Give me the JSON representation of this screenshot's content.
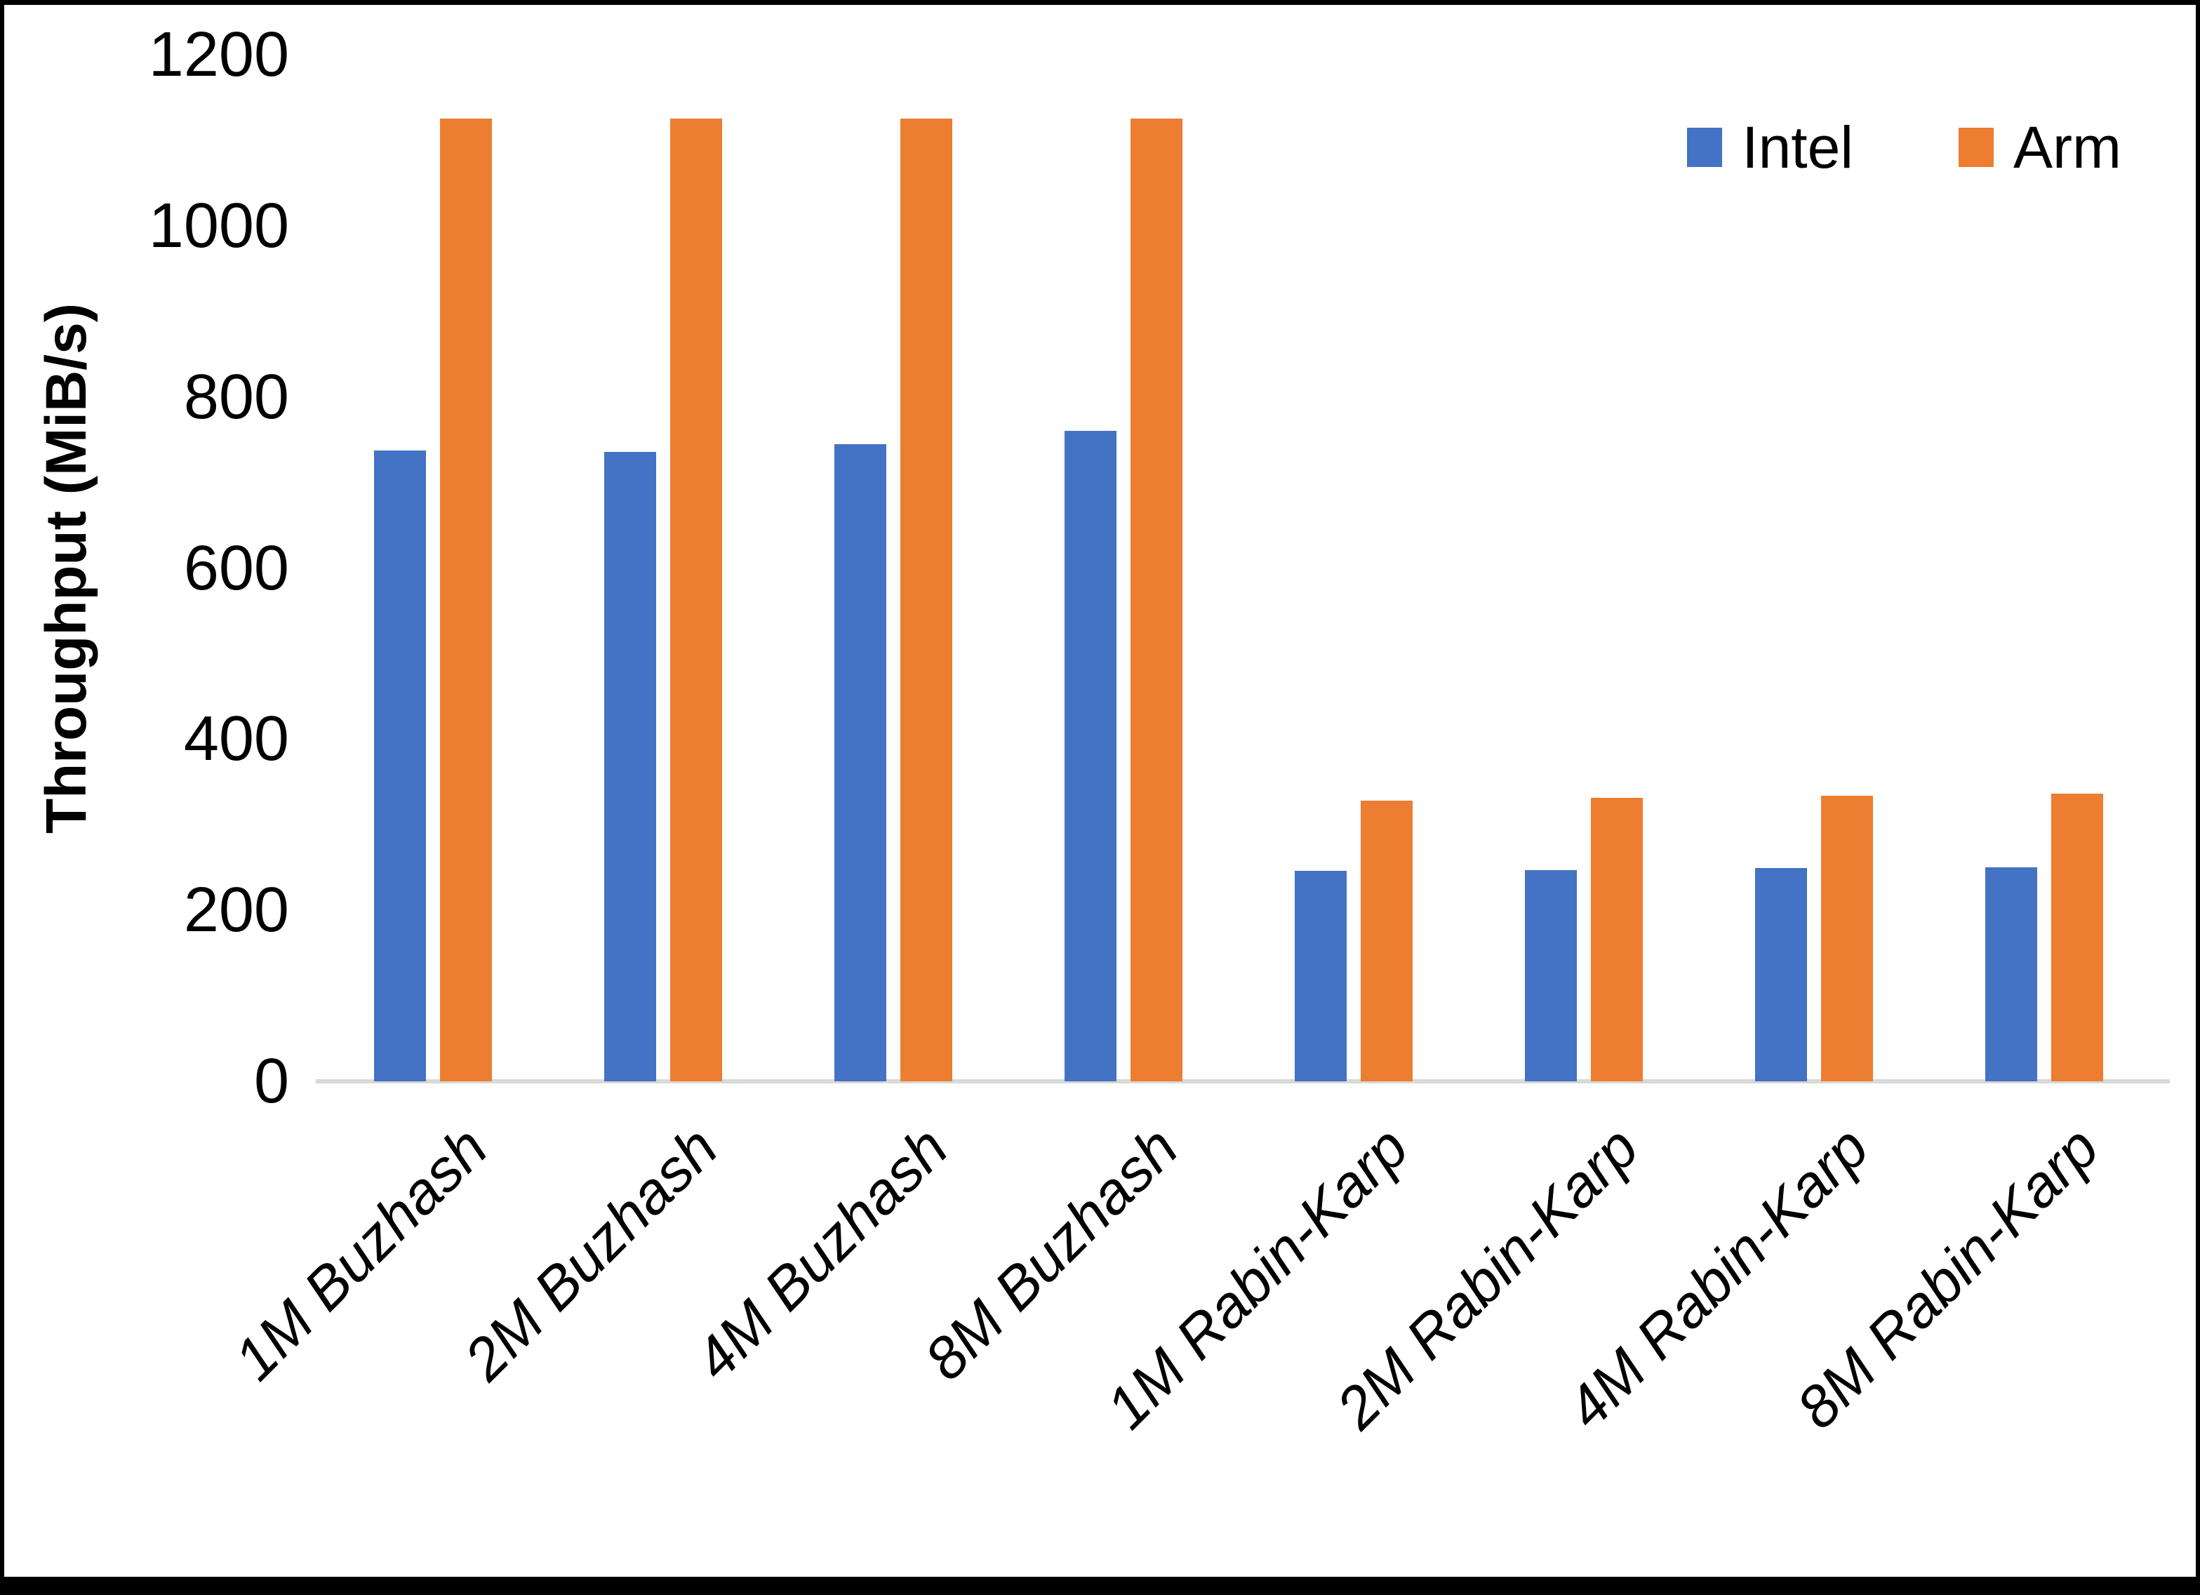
{
  "chart_data": {
    "type": "bar",
    "title": "",
    "xlabel": "",
    "ylabel": "Throughput (MiB/s)",
    "ylim": [
      0,
      1200
    ],
    "yticks": [
      0,
      200,
      400,
      600,
      800,
      1000,
      1200
    ],
    "grid": false,
    "legend_position": "top-right",
    "categories": [
      "1M Buzhash",
      "2M Buzhash",
      "4M Buzhash",
      "8M Buzhash",
      "1M Rabin-Karp",
      "2M Rabin-Karp",
      "4M Rabin-Karp",
      "8M Rabin-Karp"
    ],
    "series": [
      {
        "name": "Intel",
        "color": "#4472C4",
        "values": [
          737,
          736,
          745,
          760,
          246,
          247,
          249,
          250
        ]
      },
      {
        "name": "Arm",
        "color": "#ED7D31",
        "values": [
          1125,
          1125,
          1125,
          1125,
          328,
          331,
          334,
          336
        ]
      }
    ]
  },
  "colors": {
    "background": "#FFFFFF",
    "frame": "#000000",
    "axis_line": "#D9D9D9",
    "text": "#000000",
    "intel": "#4472C4",
    "arm": "#ED7D31"
  }
}
